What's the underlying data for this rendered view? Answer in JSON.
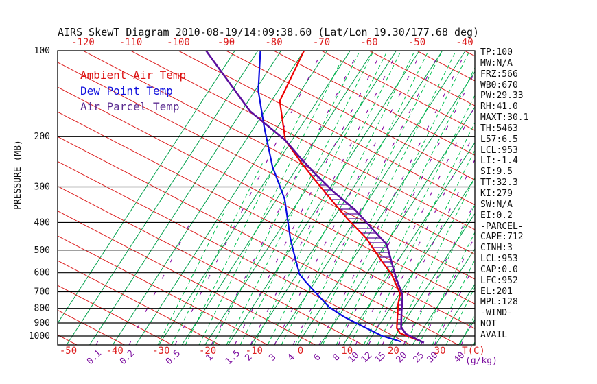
{
  "title": "AIRS SkewT Diagram 2010-08-19/14:09:38.60 (Lat/Lon 19.30/177.68 deg)",
  "legend": {
    "items": [
      {
        "label": "Ambient Air Temp",
        "color": "#dd1111"
      },
      {
        "label": "Dew Point Temp",
        "color": "#1111dd"
      },
      {
        "label": "Air Parcel Temp",
        "color": "#5c2d91"
      }
    ]
  },
  "axes": {
    "pressure_axis_label": "PRESSURE (MB)",
    "pressure_ticks": [
      100,
      200,
      300,
      400,
      500,
      600,
      700,
      800,
      900,
      1000
    ],
    "top_temp_ticks": [
      -120,
      -110,
      -100,
      -90,
      -80,
      -70,
      -60,
      -50,
      -40
    ],
    "bottom_temp_ticks": [
      -50,
      -40,
      -30,
      -20,
      -10,
      0,
      10,
      20,
      30
    ],
    "temp_unit_label": "T(C)",
    "mixing_ratio_ticks": [
      0.1,
      0.2,
      0.5,
      1,
      1.5,
      2,
      3,
      4,
      6,
      8,
      10,
      12,
      15,
      20,
      25,
      30,
      40
    ],
    "mixing_ratio_unit_label": "(g/kg)"
  },
  "stats": [
    "TP:100",
    "MW:N/A",
    "FRZ:566",
    "WB0:670",
    "PW:29.33",
    "RH:41.0",
    "MAXT:30.1",
    "TH:5463",
    "L57:6.5",
    "LCL:953",
    "LI:-1.4",
    "SI:9.5",
    "TT:32.3",
    "KI:279",
    "SW:N/A",
    "EI:0.2",
    "-PARCEL-",
    "CAPE:712",
    "CINH:3",
    "LCL:953",
    "CAP:0.0",
    "LFC:952",
    "EL:201",
    "MPL:128",
    "-WIND-",
    "NOT",
    "AVAIL"
  ],
  "chart_data": {
    "type": "line",
    "title": "Skew-T log-P thermodynamic diagram",
    "x_axis": {
      "label": "T(C)",
      "bottom_scale_range": [
        -50,
        30
      ],
      "top_scale_range": [
        -120,
        -40
      ]
    },
    "y_axis": {
      "label": "PRESSURE (MB)",
      "scale": "log",
      "range": [
        100,
        1075
      ]
    },
    "grid": {
      "isobars_mb": [
        100,
        200,
        300,
        400,
        500,
        600,
        700,
        800,
        900,
        1000
      ],
      "line_families": [
        "green solid skewed temperature lines",
        "red dry adiabats",
        "green dashed moist adiabats",
        "purple dashed mixing-ratio lines"
      ]
    },
    "legend_position": "top-left-inside",
    "series": [
      {
        "name": "Ambient Air Temp",
        "color": "#ee0000",
        "points_pressure_temp": [
          [
            100,
            -75.6
          ],
          [
            150,
            -67.8
          ],
          [
            206,
            -56.4
          ],
          [
            248,
            -46.9
          ],
          [
            285,
            -39.5
          ],
          [
            331,
            -31.4
          ],
          [
            390,
            -22.4
          ],
          [
            453,
            -13.7
          ],
          [
            543,
            -4.6
          ],
          [
            607,
            1.2
          ],
          [
            710,
            8.1
          ],
          [
            770,
            10.3
          ],
          [
            940,
            16.4
          ],
          [
            978,
            18.4
          ],
          [
            1037,
            24.3
          ]
        ]
      },
      {
        "name": "Dew Point Temp",
        "color": "#0b0be0",
        "points_pressure_temp": [
          [
            100,
            -85.0
          ],
          [
            138,
            -75.1
          ],
          [
            185,
            -64.4
          ],
          [
            255,
            -52.3
          ],
          [
            331,
            -41.3
          ],
          [
            453,
            -30.0
          ],
          [
            500,
            -26.2
          ],
          [
            607,
            -18.6
          ],
          [
            643,
            -15.5
          ],
          [
            715,
            -9.5
          ],
          [
            793,
            -3.6
          ],
          [
            855,
            1.9
          ],
          [
            930,
            9.0
          ],
          [
            1000,
            15.3
          ],
          [
            1047,
            20.8
          ]
        ]
      },
      {
        "name": "Air Parcel Temp",
        "color": "#5c0e9e",
        "points_pressure_temp": [
          [
            100,
            -96.7
          ],
          [
            163,
            -71.5
          ],
          [
            206,
            -56.4
          ],
          [
            237,
            -48.7
          ],
          [
            275,
            -40.2
          ],
          [
            313,
            -32.5
          ],
          [
            362,
            -23.2
          ],
          [
            420,
            -14.8
          ],
          [
            478,
            -7.5
          ],
          [
            625,
            3.1
          ],
          [
            718,
            9.0
          ],
          [
            832,
            13.5
          ],
          [
            930,
            17.0
          ],
          [
            983,
            19.8
          ],
          [
            1056,
            26.0
          ]
        ]
      }
    ],
    "cape_hatch_between": [
      "Ambient Air Temp",
      "Air Parcel Temp"
    ],
    "annotations": {
      "EL_mb": 201,
      "LFC_mb": 952,
      "LCL_mb": 953,
      "CAPE_J_per_kg": 712,
      "CINH_J_per_kg": 3
    }
  }
}
